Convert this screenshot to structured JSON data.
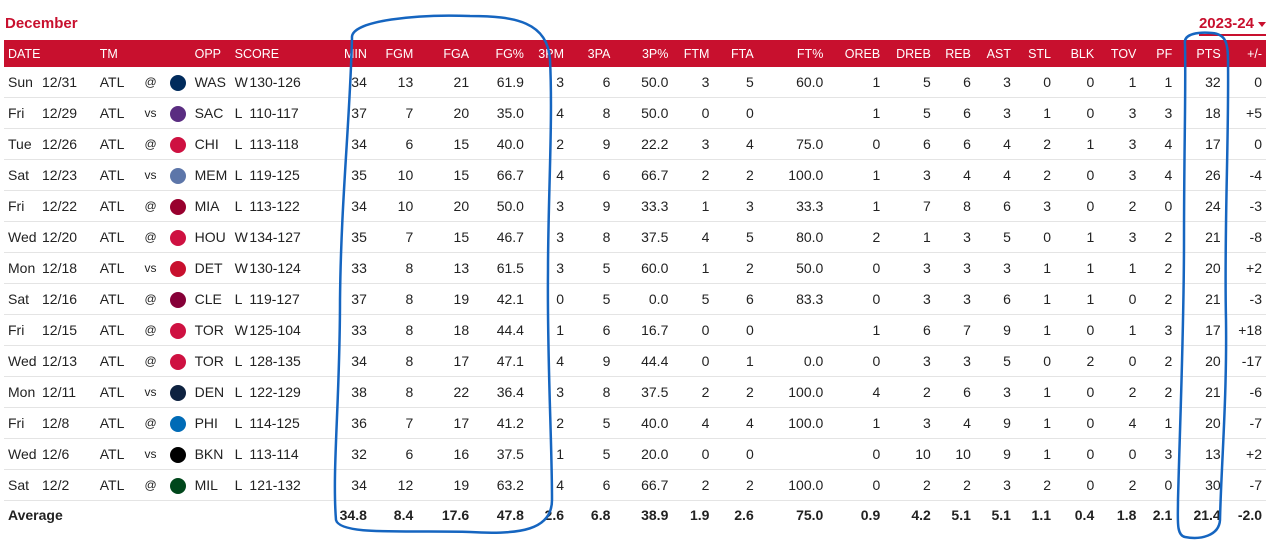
{
  "header": {
    "month": "December",
    "season": "2023-24"
  },
  "columns": {
    "date": "DATE",
    "tm": "TM",
    "opp": "OPP",
    "score": "SCORE",
    "min": "MIN",
    "fgm": "FGM",
    "fga": "FGA",
    "fgp": "FG%",
    "tpm": "3PM",
    "tpa": "3PA",
    "tpp": "3P%",
    "ftm": "FTM",
    "fta": "FTA",
    "ftp": "FT%",
    "oreb": "OREB",
    "dreb": "DREB",
    "reb": "REB",
    "ast": "AST",
    "stl": "STL",
    "blk": "BLK",
    "tov": "TOV",
    "pf": "PF",
    "pts": "PTS",
    "pm": "+/-"
  },
  "games": [
    {
      "day": "Sun",
      "date": "12/31",
      "tm": "ATL",
      "loc": "@",
      "opp": "WAS",
      "logo_color": "#002b5c",
      "res": "W",
      "score": "130-126",
      "min": "34",
      "fgm": "13",
      "fga": "21",
      "fgp": "61.9",
      "tpm": "3",
      "tpa": "6",
      "tpp": "50.0",
      "ftm": "3",
      "fta": "5",
      "ftp": "60.0",
      "oreb": "1",
      "dreb": "5",
      "reb": "6",
      "ast": "3",
      "stl": "0",
      "blk": "0",
      "tov": "1",
      "pf": "1",
      "pts": "32",
      "pm": "0"
    },
    {
      "day": "Fri",
      "date": "12/29",
      "tm": "ATL",
      "loc": "vs",
      "opp": "SAC",
      "logo_color": "#5a2d81",
      "res": "L",
      "score": "110-117",
      "min": "37",
      "fgm": "7",
      "fga": "20",
      "fgp": "35.0",
      "tpm": "4",
      "tpa": "8",
      "tpp": "50.0",
      "ftm": "0",
      "fta": "0",
      "ftp": "",
      "oreb": "1",
      "dreb": "5",
      "reb": "6",
      "ast": "3",
      "stl": "1",
      "blk": "0",
      "tov": "3",
      "pf": "3",
      "pts": "18",
      "pm": "+5"
    },
    {
      "day": "Tue",
      "date": "12/26",
      "tm": "ATL",
      "loc": "@",
      "opp": "CHI",
      "logo_color": "#ce1141",
      "res": "L",
      "score": "113-118",
      "min": "34",
      "fgm": "6",
      "fga": "15",
      "fgp": "40.0",
      "tpm": "2",
      "tpa": "9",
      "tpp": "22.2",
      "ftm": "3",
      "fta": "4",
      "ftp": "75.0",
      "oreb": "0",
      "dreb": "6",
      "reb": "6",
      "ast": "4",
      "stl": "2",
      "blk": "1",
      "tov": "3",
      "pf": "4",
      "pts": "17",
      "pm": "0"
    },
    {
      "day": "Sat",
      "date": "12/23",
      "tm": "ATL",
      "loc": "vs",
      "opp": "MEM",
      "logo_color": "#5d76a9",
      "res": "L",
      "score": "119-125",
      "min": "35",
      "fgm": "10",
      "fga": "15",
      "fgp": "66.7",
      "tpm": "4",
      "tpa": "6",
      "tpp": "66.7",
      "ftm": "2",
      "fta": "2",
      "ftp": "100.0",
      "oreb": "1",
      "dreb": "3",
      "reb": "4",
      "ast": "4",
      "stl": "2",
      "blk": "0",
      "tov": "3",
      "pf": "4",
      "pts": "26",
      "pm": "-4"
    },
    {
      "day": "Fri",
      "date": "12/22",
      "tm": "ATL",
      "loc": "@",
      "opp": "MIA",
      "logo_color": "#98002e",
      "res": "L",
      "score": "113-122",
      "min": "34",
      "fgm": "10",
      "fga": "20",
      "fgp": "50.0",
      "tpm": "3",
      "tpa": "9",
      "tpp": "33.3",
      "ftm": "1",
      "fta": "3",
      "ftp": "33.3",
      "oreb": "1",
      "dreb": "7",
      "reb": "8",
      "ast": "6",
      "stl": "3",
      "blk": "0",
      "tov": "2",
      "pf": "0",
      "pts": "24",
      "pm": "-3"
    },
    {
      "day": "Wed",
      "date": "12/20",
      "tm": "ATL",
      "loc": "@",
      "opp": "HOU",
      "logo_color": "#ce1141",
      "res": "W",
      "score": "134-127",
      "min": "35",
      "fgm": "7",
      "fga": "15",
      "fgp": "46.7",
      "tpm": "3",
      "tpa": "8",
      "tpp": "37.5",
      "ftm": "4",
      "fta": "5",
      "ftp": "80.0",
      "oreb": "2",
      "dreb": "1",
      "reb": "3",
      "ast": "5",
      "stl": "0",
      "blk": "1",
      "tov": "3",
      "pf": "2",
      "pts": "21",
      "pm": "-8"
    },
    {
      "day": "Mon",
      "date": "12/18",
      "tm": "ATL",
      "loc": "vs",
      "opp": "DET",
      "logo_color": "#c8102e",
      "res": "W",
      "score": "130-124",
      "min": "33",
      "fgm": "8",
      "fga": "13",
      "fgp": "61.5",
      "tpm": "3",
      "tpa": "5",
      "tpp": "60.0",
      "ftm": "1",
      "fta": "2",
      "ftp": "50.0",
      "oreb": "0",
      "dreb": "3",
      "reb": "3",
      "ast": "3",
      "stl": "1",
      "blk": "1",
      "tov": "1",
      "pf": "2",
      "pts": "20",
      "pm": "+2"
    },
    {
      "day": "Sat",
      "date": "12/16",
      "tm": "ATL",
      "loc": "@",
      "opp": "CLE",
      "logo_color": "#860038",
      "res": "L",
      "score": "119-127",
      "min": "37",
      "fgm": "8",
      "fga": "19",
      "fgp": "42.1",
      "tpm": "0",
      "tpa": "5",
      "tpp": "0.0",
      "ftm": "5",
      "fta": "6",
      "ftp": "83.3",
      "oreb": "0",
      "dreb": "3",
      "reb": "3",
      "ast": "6",
      "stl": "1",
      "blk": "1",
      "tov": "0",
      "pf": "2",
      "pts": "21",
      "pm": "-3"
    },
    {
      "day": "Fri",
      "date": "12/15",
      "tm": "ATL",
      "loc": "@",
      "opp": "TOR",
      "logo_color": "#ce1141",
      "res": "W",
      "score": "125-104",
      "min": "33",
      "fgm": "8",
      "fga": "18",
      "fgp": "44.4",
      "tpm": "1",
      "tpa": "6",
      "tpp": "16.7",
      "ftm": "0",
      "fta": "0",
      "ftp": "",
      "oreb": "1",
      "dreb": "6",
      "reb": "7",
      "ast": "9",
      "stl": "1",
      "blk": "0",
      "tov": "1",
      "pf": "3",
      "pts": "17",
      "pm": "+18"
    },
    {
      "day": "Wed",
      "date": "12/13",
      "tm": "ATL",
      "loc": "@",
      "opp": "TOR",
      "logo_color": "#ce1141",
      "res": "L",
      "score": "128-135",
      "min": "34",
      "fgm": "8",
      "fga": "17",
      "fgp": "47.1",
      "tpm": "4",
      "tpa": "9",
      "tpp": "44.4",
      "ftm": "0",
      "fta": "1",
      "ftp": "0.0",
      "oreb": "0",
      "dreb": "3",
      "reb": "3",
      "ast": "5",
      "stl": "0",
      "blk": "2",
      "tov": "0",
      "pf": "2",
      "pts": "20",
      "pm": "-17"
    },
    {
      "day": "Mon",
      "date": "12/11",
      "tm": "ATL",
      "loc": "vs",
      "opp": "DEN",
      "logo_color": "#0e2240",
      "res": "L",
      "score": "122-129",
      "min": "38",
      "fgm": "8",
      "fga": "22",
      "fgp": "36.4",
      "tpm": "3",
      "tpa": "8",
      "tpp": "37.5",
      "ftm": "2",
      "fta": "2",
      "ftp": "100.0",
      "oreb": "4",
      "dreb": "2",
      "reb": "6",
      "ast": "3",
      "stl": "1",
      "blk": "0",
      "tov": "2",
      "pf": "2",
      "pts": "21",
      "pm": "-6"
    },
    {
      "day": "Fri",
      "date": "12/8",
      "tm": "ATL",
      "loc": "@",
      "opp": "PHI",
      "logo_color": "#006bb6",
      "res": "L",
      "score": "114-125",
      "min": "36",
      "fgm": "7",
      "fga": "17",
      "fgp": "41.2",
      "tpm": "2",
      "tpa": "5",
      "tpp": "40.0",
      "ftm": "4",
      "fta": "4",
      "ftp": "100.0",
      "oreb": "1",
      "dreb": "3",
      "reb": "4",
      "ast": "9",
      "stl": "1",
      "blk": "0",
      "tov": "4",
      "pf": "1",
      "pts": "20",
      "pm": "-7"
    },
    {
      "day": "Wed",
      "date": "12/6",
      "tm": "ATL",
      "loc": "vs",
      "opp": "BKN",
      "logo_color": "#000000",
      "res": "L",
      "score": "113-114",
      "min": "32",
      "fgm": "6",
      "fga": "16",
      "fgp": "37.5",
      "tpm": "1",
      "tpa": "5",
      "tpp": "20.0",
      "ftm": "0",
      "fta": "0",
      "ftp": "",
      "oreb": "0",
      "dreb": "10",
      "reb": "10",
      "ast": "9",
      "stl": "1",
      "blk": "0",
      "tov": "0",
      "pf": "3",
      "pts": "13",
      "pm": "+2"
    },
    {
      "day": "Sat",
      "date": "12/2",
      "tm": "ATL",
      "loc": "@",
      "opp": "MIL",
      "logo_color": "#00471b",
      "res": "L",
      "score": "121-132",
      "min": "34",
      "fgm": "12",
      "fga": "19",
      "fgp": "63.2",
      "tpm": "4",
      "tpa": "6",
      "tpp": "66.7",
      "ftm": "2",
      "fta": "2",
      "ftp": "100.0",
      "oreb": "0",
      "dreb": "2",
      "reb": "2",
      "ast": "3",
      "stl": "2",
      "blk": "0",
      "tov": "2",
      "pf": "0",
      "pts": "30",
      "pm": "-7"
    }
  ],
  "average": {
    "label": "Average",
    "min": "34.8",
    "fgm": "8.4",
    "fga": "17.6",
    "fgp": "47.8",
    "tpm": "2.6",
    "tpa": "6.8",
    "tpp": "38.9",
    "ftm": "1.9",
    "fta": "2.6",
    "ftp": "75.0",
    "oreb": "0.9",
    "dreb": "4.2",
    "reb": "5.1",
    "ast": "5.1",
    "stl": "1.1",
    "blk": "0.4",
    "tov": "1.8",
    "pf": "2.1",
    "pts": "21.4",
    "pm": "-2.0"
  },
  "colors": {
    "brand": "#c8102e",
    "link": "#1a6fc4",
    "annotation": "#1565c0"
  }
}
